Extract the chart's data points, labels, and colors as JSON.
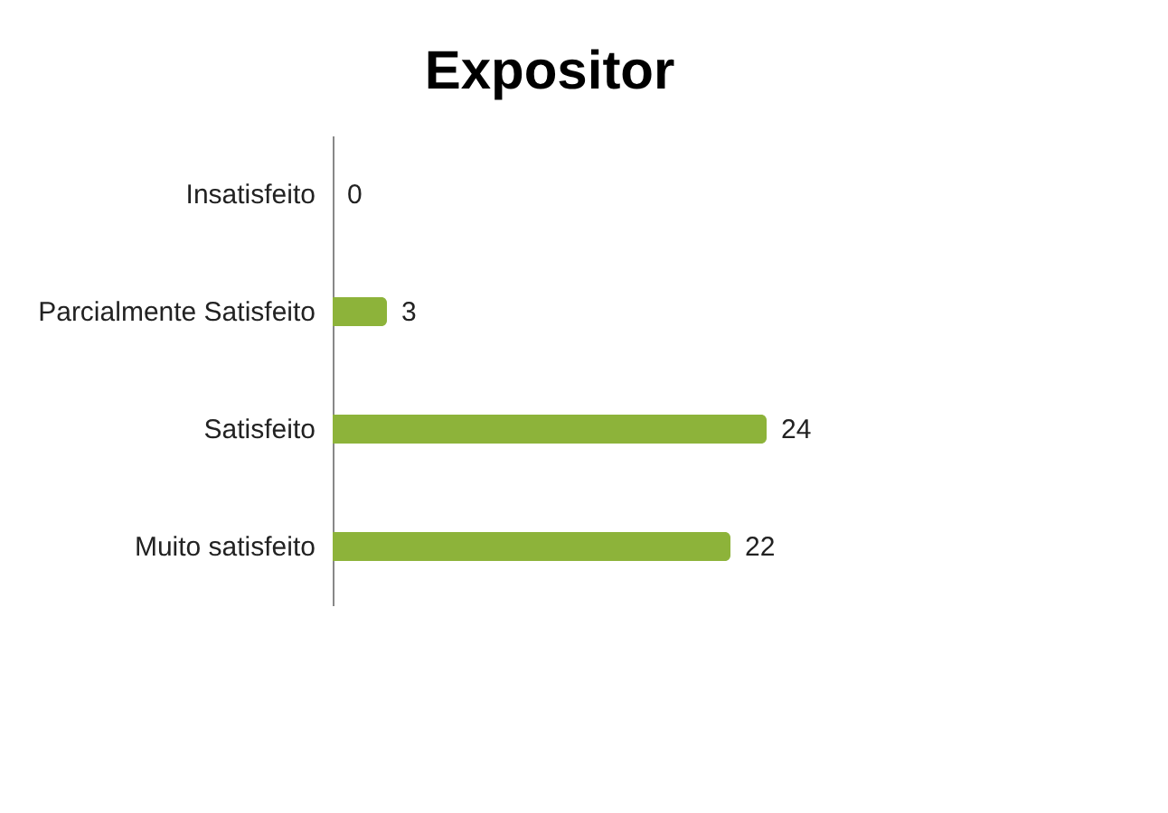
{
  "chart_data": {
    "type": "bar",
    "orientation": "horizontal",
    "title": "Expositor",
    "categories": [
      "Insatisfeito",
      "Parcialmente Satisfeito",
      "Satisfeito",
      "Muito satisfeito"
    ],
    "values": [
      0,
      3,
      24,
      22
    ],
    "color": "#8db33a",
    "data_labels": true
  }
}
